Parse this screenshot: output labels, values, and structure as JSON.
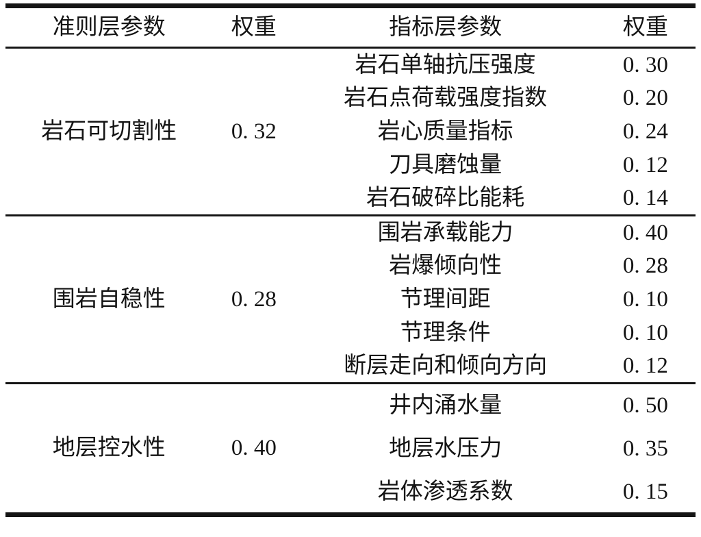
{
  "colors": {
    "background": "#ffffff",
    "text": "#141414",
    "rule": "#151515"
  },
  "table": {
    "headers": [
      "准则层参数",
      "权重",
      "指标层参数",
      "权重"
    ],
    "groups": [
      {
        "criterion": "岩石可切割性",
        "weight": "0. 32",
        "indicators": [
          {
            "name": "岩石单轴抗压强度",
            "weight": "0. 30"
          },
          {
            "name": "岩石点荷载强度指数",
            "weight": "0. 20"
          },
          {
            "name": "岩心质量指标",
            "weight": "0. 24"
          },
          {
            "name": "刀具磨蚀量",
            "weight": "0. 12"
          },
          {
            "name": "岩石破碎比能耗",
            "weight": "0. 14"
          }
        ]
      },
      {
        "criterion": "围岩自稳性",
        "weight": "0. 28",
        "indicators": [
          {
            "name": "围岩承载能力",
            "weight": "0. 40"
          },
          {
            "name": "岩爆倾向性",
            "weight": "0. 28"
          },
          {
            "name": "节理间距",
            "weight": "0. 10"
          },
          {
            "name": "节理条件",
            "weight": "0. 10"
          },
          {
            "name": "断层走向和倾向方向",
            "weight": "0. 12"
          }
        ]
      },
      {
        "criterion": "地层控水性",
        "weight": "0. 40",
        "indicators": [
          {
            "name": "井内涌水量",
            "weight": "0. 50"
          },
          {
            "name": "地层水压力",
            "weight": "0. 35"
          },
          {
            "name": "岩体渗透系数",
            "weight": "0. 15"
          }
        ]
      }
    ]
  }
}
